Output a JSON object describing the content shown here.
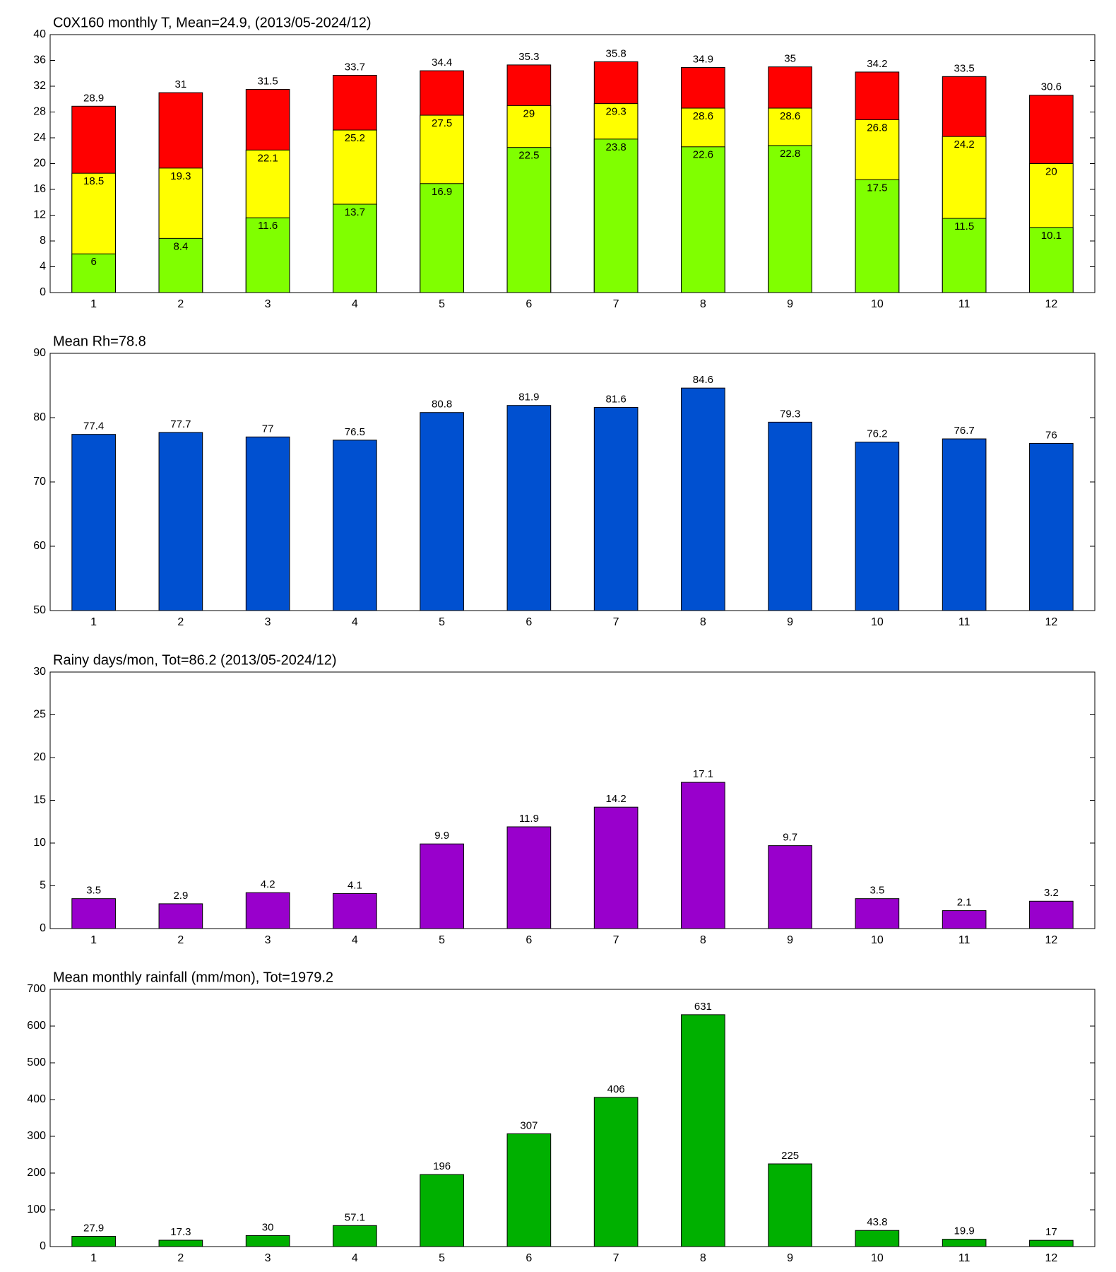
{
  "chart_data": [
    {
      "type": "bar",
      "barmode": "overlay",
      "title": "C0X160 monthly T, Mean=24.9, (2013/05-2024/12)",
      "categories": [
        1,
        2,
        3,
        4,
        5,
        6,
        7,
        8,
        9,
        10,
        11,
        12
      ],
      "series": [
        {
          "color": "#ff0000",
          "values": [
            28.9,
            31,
            31.5,
            33.7,
            34.4,
            35.3,
            35.8,
            34.9,
            35,
            34.2,
            33.5,
            30.6
          ]
        },
        {
          "color": "#ffff00",
          "values": [
            18.5,
            19.3,
            22.1,
            25.2,
            27.5,
            29,
            29.3,
            28.6,
            28.6,
            26.8,
            24.2,
            20
          ]
        },
        {
          "color": "#80ff00",
          "values": [
            6,
            8.4,
            11.6,
            13.7,
            16.9,
            22.5,
            23.8,
            22.6,
            22.8,
            17.5,
            11.5,
            10.1
          ]
        }
      ],
      "ylim": [
        0,
        40
      ],
      "yticks": [
        0,
        4,
        8,
        12,
        16,
        20,
        24,
        28,
        32,
        36,
        40
      ]
    },
    {
      "type": "bar",
      "title": "Mean Rh=78.8",
      "categories": [
        1,
        2,
        3,
        4,
        5,
        6,
        7,
        8,
        9,
        10,
        11,
        12
      ],
      "series": [
        {
          "color": "#0050d0",
          "values": [
            77.4,
            77.7,
            77,
            76.5,
            80.8,
            81.9,
            81.6,
            84.6,
            79.3,
            76.2,
            76.7,
            76
          ]
        }
      ],
      "ylim": [
        50,
        90
      ],
      "yticks": [
        50,
        60,
        70,
        80,
        90
      ]
    },
    {
      "type": "bar",
      "title": "Rainy days/mon, Tot=86.2 (2013/05-2024/12)",
      "categories": [
        1,
        2,
        3,
        4,
        5,
        6,
        7,
        8,
        9,
        10,
        11,
        12
      ],
      "series": [
        {
          "color": "#9900cc",
          "values": [
            3.5,
            2.9,
            4.2,
            4.1,
            9.9,
            11.9,
            14.2,
            17.1,
            9.7,
            3.5,
            2.1,
            3.2
          ]
        }
      ],
      "ylim": [
        0,
        30
      ],
      "yticks": [
        0,
        5,
        10,
        15,
        20,
        25,
        30
      ]
    },
    {
      "type": "bar",
      "title": "Mean monthly rainfall (mm/mon), Tot=1979.2",
      "categories": [
        1,
        2,
        3,
        4,
        5,
        6,
        7,
        8,
        9,
        10,
        11,
        12
      ],
      "series": [
        {
          "color": "#00b000",
          "values": [
            27.9,
            17.3,
            30,
            57.1,
            196,
            307,
            406,
            631,
            225,
            43.8,
            19.9,
            17
          ]
        }
      ],
      "ylim": [
        0,
        700
      ],
      "yticks": [
        0,
        100,
        200,
        300,
        400,
        500,
        600,
        700
      ]
    }
  ]
}
